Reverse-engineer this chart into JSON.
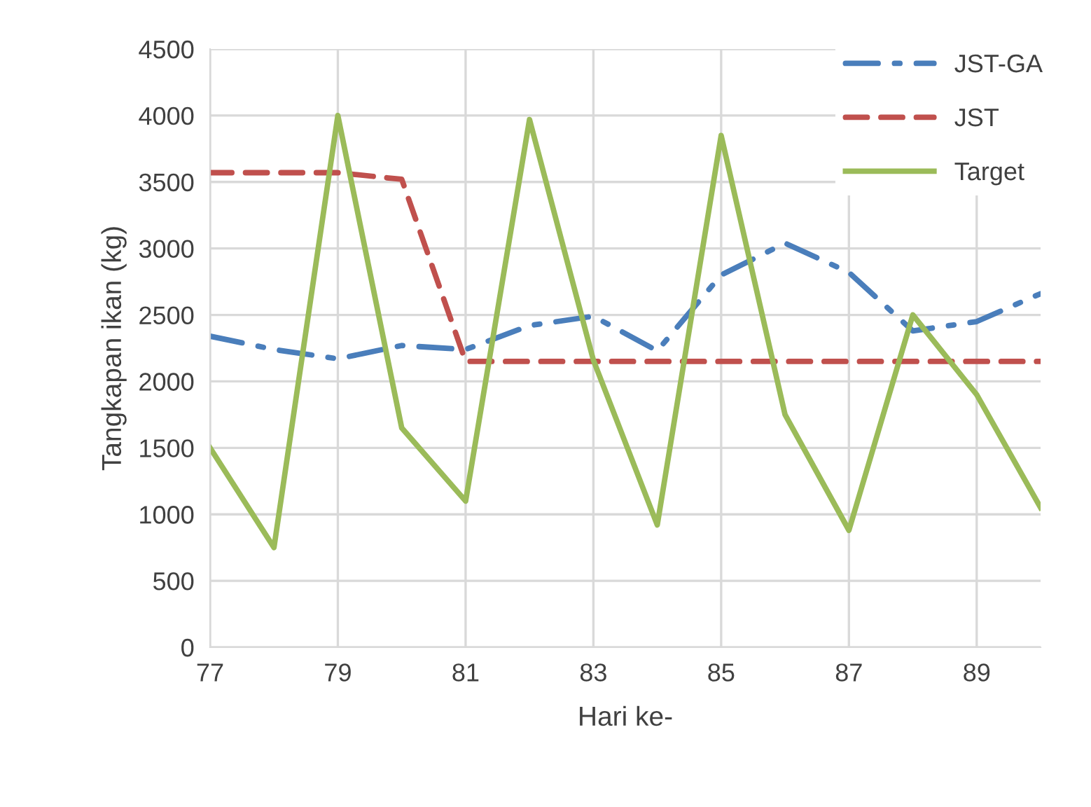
{
  "chart_data": {
    "type": "line",
    "xlabel": "Hari ke-",
    "ylabel": "Tangkapan ikan (kg)",
    "x": [
      77,
      78,
      79,
      80,
      81,
      82,
      83,
      84,
      85,
      86,
      87,
      88,
      89,
      90
    ],
    "series": [
      {
        "name": "JST-GA",
        "color": "#4a7ebb",
        "line_style": "dashdot",
        "values": [
          2340,
          2240,
          2170,
          2270,
          2240,
          2420,
          2490,
          2230,
          2800,
          3040,
          2820,
          2380,
          2450,
          2660
        ]
      },
      {
        "name": "JST",
        "color": "#c0504d",
        "line_style": "dashed",
        "values": [
          3570,
          3570,
          3570,
          3520,
          2150,
          2150,
          2150,
          2150,
          2150,
          2150,
          2150,
          2150,
          2150,
          2150
        ]
      },
      {
        "name": "Target",
        "color": "#9bbb59",
        "line_style": "solid",
        "values": [
          1500,
          750,
          4000,
          1650,
          1100,
          3970,
          2160,
          920,
          3850,
          1750,
          880,
          2500,
          1900,
          1050
        ]
      }
    ],
    "xlim": [
      77,
      90
    ],
    "xticks": [
      77,
      79,
      81,
      83,
      85,
      87,
      89
    ],
    "ylim": [
      0,
      4500
    ],
    "yticks": [
      0,
      500,
      1000,
      1500,
      2000,
      2500,
      3000,
      3500,
      4000,
      4500
    ],
    "grid": true,
    "legend": "top right"
  }
}
